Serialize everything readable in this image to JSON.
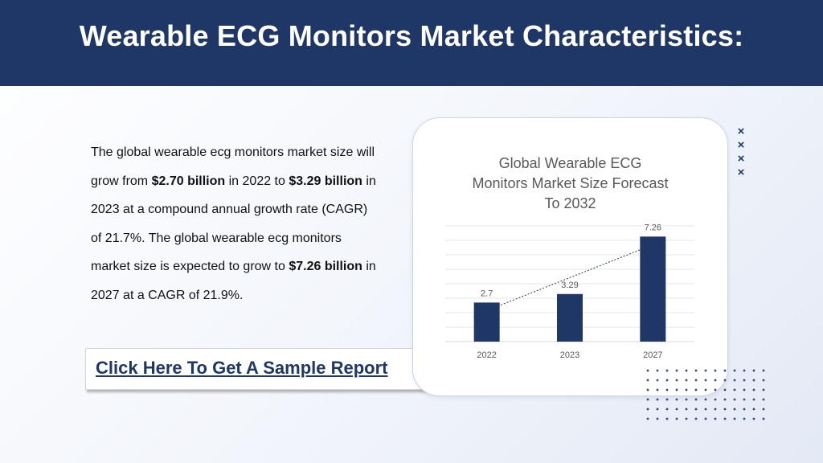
{
  "slide": {
    "title": "Wearable ECG Monitors Market Characteristics:"
  },
  "paragraph": {
    "p1": "The global wearable ecg monitors market size will grow from ",
    "b1": "$2.70 billion",
    "p2": " in 2022 to ",
    "b2": "$3.29 billion",
    "p3": " in 2023 at a compound annual growth rate (CAGR) of 21.7%. The global wearable ecg monitors market size is expected to grow to ",
    "b3": "$7.26 billion",
    "p4": " in 2027 at a CAGR of 21.9%."
  },
  "cta": {
    "label": "Click Here To Get A Sample Report"
  },
  "decor": {
    "x_mark": "×"
  },
  "colors": {
    "brand": "#1f3766",
    "bar": "#1f3766",
    "gridline": "#e6e6e6",
    "axis_text": "#595959"
  },
  "chart_data": {
    "type": "bar",
    "title_lines": [
      "Global Wearable ECG",
      "Monitors Market Size Forecast",
      "To 2032"
    ],
    "categories": [
      "2022",
      "2023",
      "2027"
    ],
    "values": [
      2.7,
      3.29,
      7.26
    ],
    "data_labels": [
      "2.7",
      "3.29",
      "7.26"
    ],
    "trendline": "linear",
    "xlabel": "",
    "ylabel": "",
    "ylim": [
      0,
      8
    ],
    "grid": true,
    "y_axis_visible": false,
    "legend": "none"
  }
}
